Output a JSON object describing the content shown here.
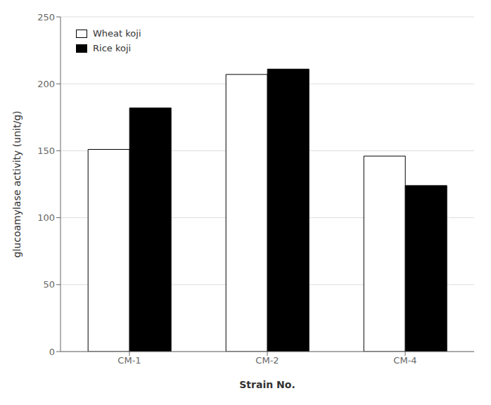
{
  "chart_data": {
    "type": "bar",
    "xlabel": "Strain No.",
    "ylabel": "glucoamylase activity  (unit/g)",
    "categories": [
      "CM-1",
      "CM-2",
      "CM-4"
    ],
    "series": [
      {
        "name": "Wheat koji",
        "color": "#ffffff",
        "values": [
          151,
          207,
          146
        ]
      },
      {
        "name": "Rice koji",
        "color": "#000000",
        "values": [
          182,
          211,
          124
        ]
      }
    ],
    "ylim": [
      0,
      250
    ],
    "yticks": [
      0,
      50,
      100,
      150,
      200,
      250
    ],
    "grid": true,
    "legend": "upper left"
  }
}
